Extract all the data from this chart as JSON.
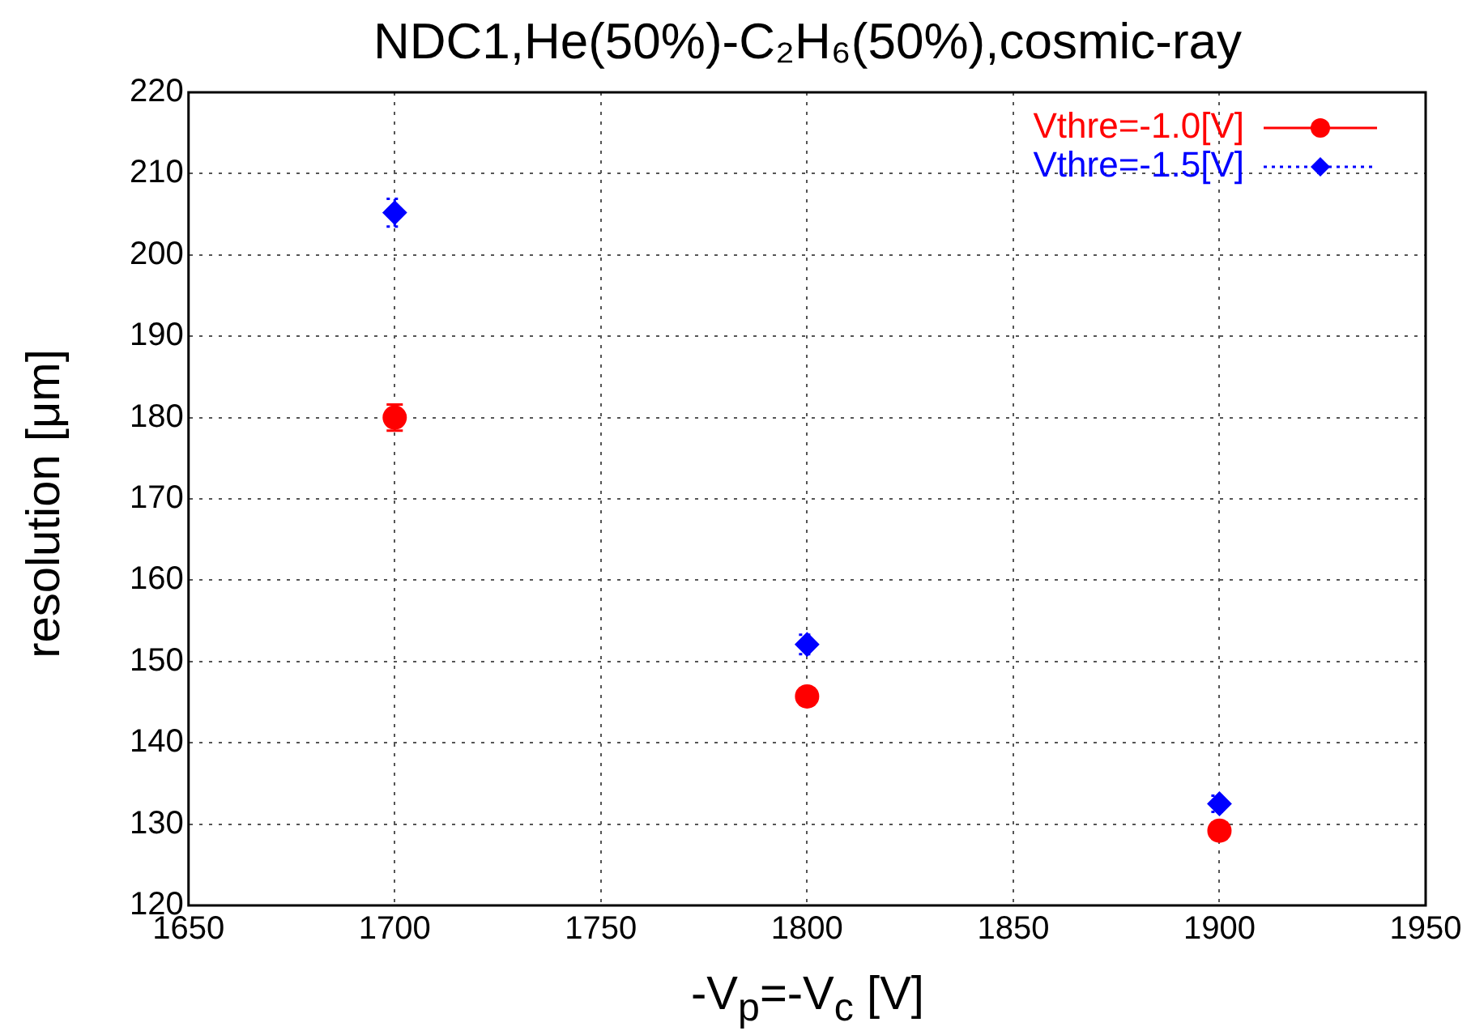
{
  "chart_data": {
    "type": "scatter",
    "title": "NDC1,He(50%)-C₂H₆(50%),cosmic-ray",
    "xlabel": "-V$_{p}$=-V$_{c}$ [V]",
    "ylabel": "resolution [μm]",
    "x": [
      1700,
      1800,
      1900
    ],
    "series": [
      {
        "name": "Vthre=-1.0[V]",
        "color": "#ff0000",
        "marker": "circle",
        "line_style": "solid",
        "values": [
          180.0,
          145.7,
          129.2
        ],
        "errors": [
          1.6,
          1.0,
          1.0
        ]
      },
      {
        "name": "Vthre=-1.5[V]",
        "color": "#0000ff",
        "marker": "diamond",
        "line_style": "dotted",
        "values": [
          205.2,
          152.1,
          132.5
        ],
        "errors": [
          1.7,
          1.2,
          1.0
        ]
      }
    ],
    "xlim": [
      1650,
      1950
    ],
    "xticks": [
      1650,
      1700,
      1750,
      1800,
      1850,
      1900,
      1950
    ],
    "ylim": [
      120,
      220
    ],
    "yticks": [
      120,
      130,
      140,
      150,
      160,
      170,
      180,
      190,
      200,
      210,
      220
    ],
    "grid": true,
    "legend": "top right"
  }
}
